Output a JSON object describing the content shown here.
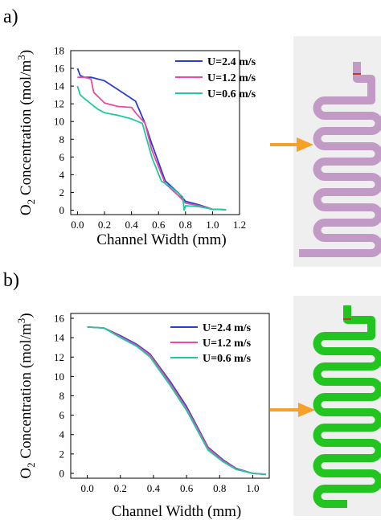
{
  "panels": [
    {
      "label": "a)"
    },
    {
      "label": "b)"
    }
  ],
  "colors": {
    "series": [
      "#2a3fd1",
      "#ec4aa0",
      "#20c9a0"
    ],
    "arrow": "#f6a028",
    "channel_a": "#c29ac6",
    "channel_b": "#22c520",
    "marker": "#c0392b",
    "panel_bg": "#efefef"
  },
  "icons": {
    "arrow": "right-arrow-icon",
    "channel_a": "serpentine-channel-icon",
    "channel_b": "serpentine-channel-icon"
  },
  "chart_data": [
    {
      "type": "line",
      "panel": "a)",
      "title": "",
      "xlabel": "Channel Width (mm)",
      "ylabel": "O2 Concentration (mol/m3)",
      "xlim": [
        -0.05,
        1.2
      ],
      "ylim": [
        -0.5,
        18
      ],
      "xticks": [
        "0.0",
        "0.2",
        "0.4",
        "0.6",
        "0.8",
        "1.0",
        "1.2"
      ],
      "yticks": [
        "0",
        "2",
        "4",
        "6",
        "8",
        "10",
        "12",
        "14",
        "16",
        "18"
      ],
      "legend_position": "top-right",
      "series": [
        {
          "name": "U=2.4 m/s",
          "x": [
            0.0,
            0.02,
            0.05,
            0.1,
            0.2,
            0.3,
            0.43,
            0.5,
            0.55,
            0.65,
            0.75,
            0.8,
            0.9,
            1.0,
            1.1
          ],
          "y": [
            16.0,
            15.2,
            15.0,
            15.0,
            14.6,
            13.6,
            12.3,
            9.8,
            7.5,
            3.3,
            1.9,
            1.0,
            0.6,
            0.1,
            0.05
          ]
        },
        {
          "name": "U=1.2 m/s",
          "x": [
            0.0,
            0.05,
            0.1,
            0.12,
            0.2,
            0.3,
            0.4,
            0.43,
            0.5,
            0.55,
            0.65,
            0.75,
            0.8,
            0.9,
            1.0,
            1.1
          ],
          "y": [
            15.0,
            15.0,
            14.8,
            13.3,
            12.1,
            11.7,
            11.6,
            11.0,
            9.8,
            6.8,
            3.0,
            1.6,
            0.8,
            0.5,
            0.1,
            0.05
          ]
        },
        {
          "name": "U=0.6 m/s",
          "x": [
            0.0,
            0.02,
            0.05,
            0.1,
            0.15,
            0.2,
            0.3,
            0.4,
            0.48,
            0.55,
            0.62,
            0.7,
            0.78,
            0.79,
            0.8,
            0.9,
            1.0,
            1.1
          ],
          "y": [
            14.0,
            13.0,
            12.6,
            12.0,
            11.4,
            11.0,
            10.7,
            10.3,
            9.8,
            6.0,
            3.3,
            2.5,
            1.5,
            0.0,
            0.5,
            0.4,
            0.1,
            0.05
          ]
        }
      ]
    },
    {
      "type": "line",
      "panel": "b)",
      "title": "",
      "xlabel": "Channel Width (mm)",
      "ylabel": "O2 Concentration (mol/m3)",
      "xlim": [
        -0.1,
        1.1
      ],
      "ylim": [
        -0.5,
        16.5
      ],
      "xticks": [
        "0.0",
        "0.2",
        "0.4",
        "0.6",
        "0.8",
        "1.0"
      ],
      "yticks": [
        "0",
        "2",
        "4",
        "6",
        "8",
        "10",
        "12",
        "14",
        "16"
      ],
      "legend_position": "top-right",
      "series": [
        {
          "name": "U=2.4 m/s",
          "x": [
            0.0,
            0.1,
            0.2,
            0.3,
            0.38,
            0.5,
            0.6,
            0.73,
            0.82,
            0.9,
            1.0,
            1.08
          ],
          "y": [
            15.1,
            15.0,
            14.2,
            13.3,
            12.3,
            9.5,
            6.9,
            2.7,
            1.4,
            0.5,
            0.0,
            -0.1
          ]
        },
        {
          "name": "U=1.2 m/s",
          "x": [
            0.0,
            0.1,
            0.2,
            0.3,
            0.38,
            0.5,
            0.6,
            0.73,
            0.82,
            0.9,
            1.0,
            1.08
          ],
          "y": [
            15.1,
            15.0,
            14.1,
            13.2,
            12.2,
            9.3,
            6.7,
            2.6,
            1.3,
            0.45,
            0.0,
            -0.1
          ]
        },
        {
          "name": "U=0.6 m/s",
          "x": [
            0.0,
            0.1,
            0.2,
            0.3,
            0.38,
            0.5,
            0.6,
            0.73,
            0.82,
            0.9,
            1.0,
            1.08
          ],
          "y": [
            15.1,
            15.0,
            14.0,
            13.1,
            12.0,
            9.1,
            6.5,
            2.4,
            1.2,
            0.4,
            0.0,
            -0.1
          ]
        }
      ]
    }
  ]
}
